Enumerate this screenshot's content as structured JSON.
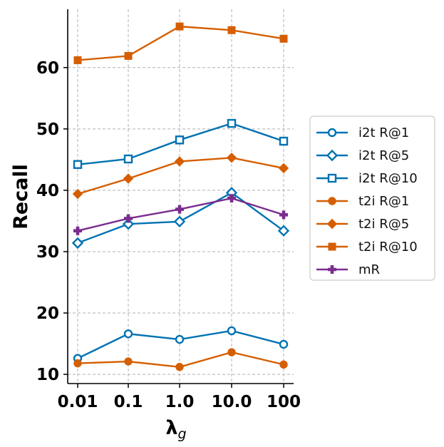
{
  "chart_data": {
    "type": "line",
    "title": "",
    "xlabel": "λg",
    "ylabel": "Recall",
    "x": [
      "0.01",
      "0.1",
      "1.0",
      "10.0",
      "100"
    ],
    "ylim": [
      8.5,
      69.5
    ],
    "yticks": [
      10,
      20,
      30,
      40,
      50,
      60
    ],
    "grid": true,
    "legend_position": "right",
    "colors": {
      "blue": "#0072B2",
      "orange": "#D55E00",
      "purple": "#7B2D8E"
    },
    "series": [
      {
        "name": "i2t R@1",
        "color": "#0072B2",
        "marker": "circle-open",
        "values": [
          12.6,
          16.6,
          15.7,
          17.1,
          14.9
        ]
      },
      {
        "name": "i2t R@5",
        "color": "#0072B2",
        "marker": "diamond-open",
        "values": [
          31.4,
          34.5,
          34.9,
          39.6,
          33.4
        ]
      },
      {
        "name": "i2t R@10",
        "color": "#0072B2",
        "marker": "square-open",
        "values": [
          44.2,
          45.1,
          48.2,
          50.9,
          48.0
        ]
      },
      {
        "name": "t2i R@1",
        "color": "#D55E00",
        "marker": "circle",
        "values": [
          11.8,
          12.1,
          11.2,
          13.6,
          11.6
        ]
      },
      {
        "name": "t2i R@5",
        "color": "#D55E00",
        "marker": "diamond",
        "values": [
          39.4,
          41.9,
          44.7,
          45.3,
          43.6
        ]
      },
      {
        "name": "t2i R@10",
        "color": "#D55E00",
        "marker": "square",
        "values": [
          61.2,
          61.9,
          66.7,
          66.1,
          64.7
        ]
      },
      {
        "name": "mR",
        "color": "#7B2D8E",
        "marker": "plus",
        "values": [
          33.4,
          35.4,
          36.9,
          38.7,
          36.0
        ]
      }
    ]
  }
}
